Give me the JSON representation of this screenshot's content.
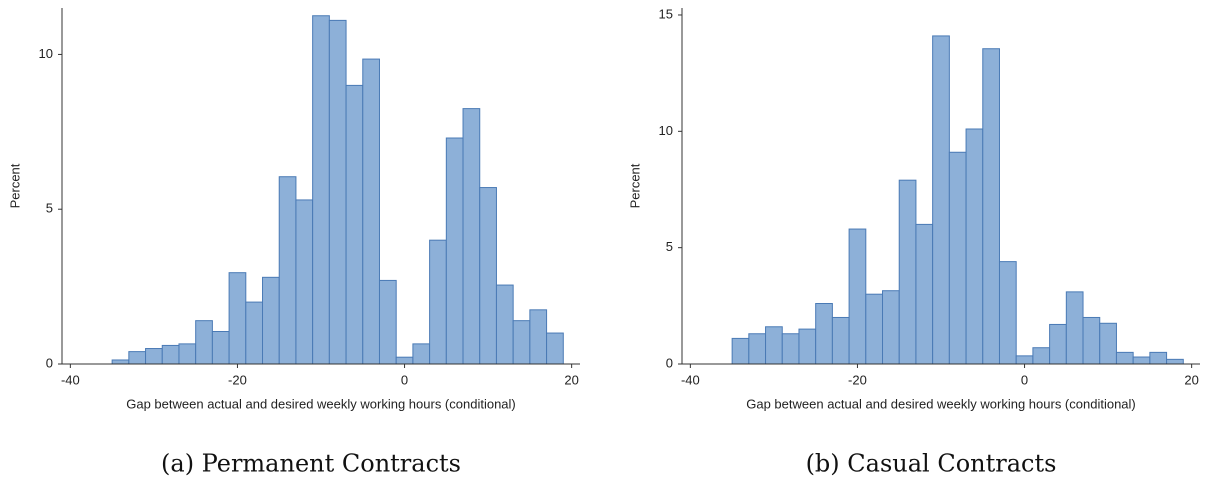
{
  "chart_data": [
    {
      "type": "histogram",
      "caption": "(a) Permanent Contracts",
      "xlabel": "Gap between actual and desired weekly working hours (conditional)",
      "ylabel": "Percent",
      "color": "#8db0d8",
      "edgecolor": "#4a7ab5",
      "bins": [
        -35,
        -33,
        -31,
        -29,
        -27,
        -25,
        -23,
        -21,
        -19,
        -17,
        -15,
        -13,
        -11,
        -9,
        -7,
        -5,
        -3,
        -1,
        1,
        3,
        5,
        7,
        9,
        11,
        13,
        15,
        17,
        19
      ],
      "values": [
        0.13,
        0.4,
        0.5,
        0.6,
        0.65,
        1.4,
        1.05,
        2.95,
        2.0,
        2.8,
        6.05,
        5.3,
        11.25,
        11.1,
        9.0,
        9.85,
        2.7,
        0.22,
        0.65,
        4.0,
        7.3,
        8.25,
        5.7,
        2.55,
        1.4,
        1.75,
        1.0
      ],
      "xlim": [
        -41,
        21
      ],
      "ylim": [
        0,
        11.5
      ],
      "xticks": [
        -40,
        -20,
        0,
        20
      ],
      "yticks": [
        0,
        5,
        10
      ]
    },
    {
      "type": "histogram",
      "caption": "(b) Casual Contracts",
      "xlabel": "Gap between actual and desired weekly working hours (conditional)",
      "ylabel": "Percent",
      "color": "#8db0d8",
      "edgecolor": "#4a7ab5",
      "bins": [
        -35,
        -33,
        -31,
        -29,
        -27,
        -25,
        -23,
        -21,
        -19,
        -17,
        -15,
        -13,
        -11,
        -9,
        -7,
        -5,
        -3,
        -1,
        1,
        3,
        5,
        7,
        9,
        11,
        13,
        15,
        17,
        19
      ],
      "values": [
        1.1,
        1.3,
        1.6,
        1.3,
        1.5,
        2.6,
        2.0,
        5.8,
        3.0,
        3.15,
        7.9,
        6.0,
        14.1,
        9.1,
        10.1,
        13.55,
        4.4,
        0.35,
        0.7,
        1.7,
        3.1,
        2.0,
        1.75,
        0.5,
        0.3,
        0.5,
        0.2
      ],
      "xlim": [
        -41,
        21
      ],
      "ylim": [
        0,
        15.3
      ],
      "xticks": [
        -40,
        -20,
        0,
        20
      ],
      "yticks": [
        0,
        5,
        10,
        15
      ]
    }
  ]
}
